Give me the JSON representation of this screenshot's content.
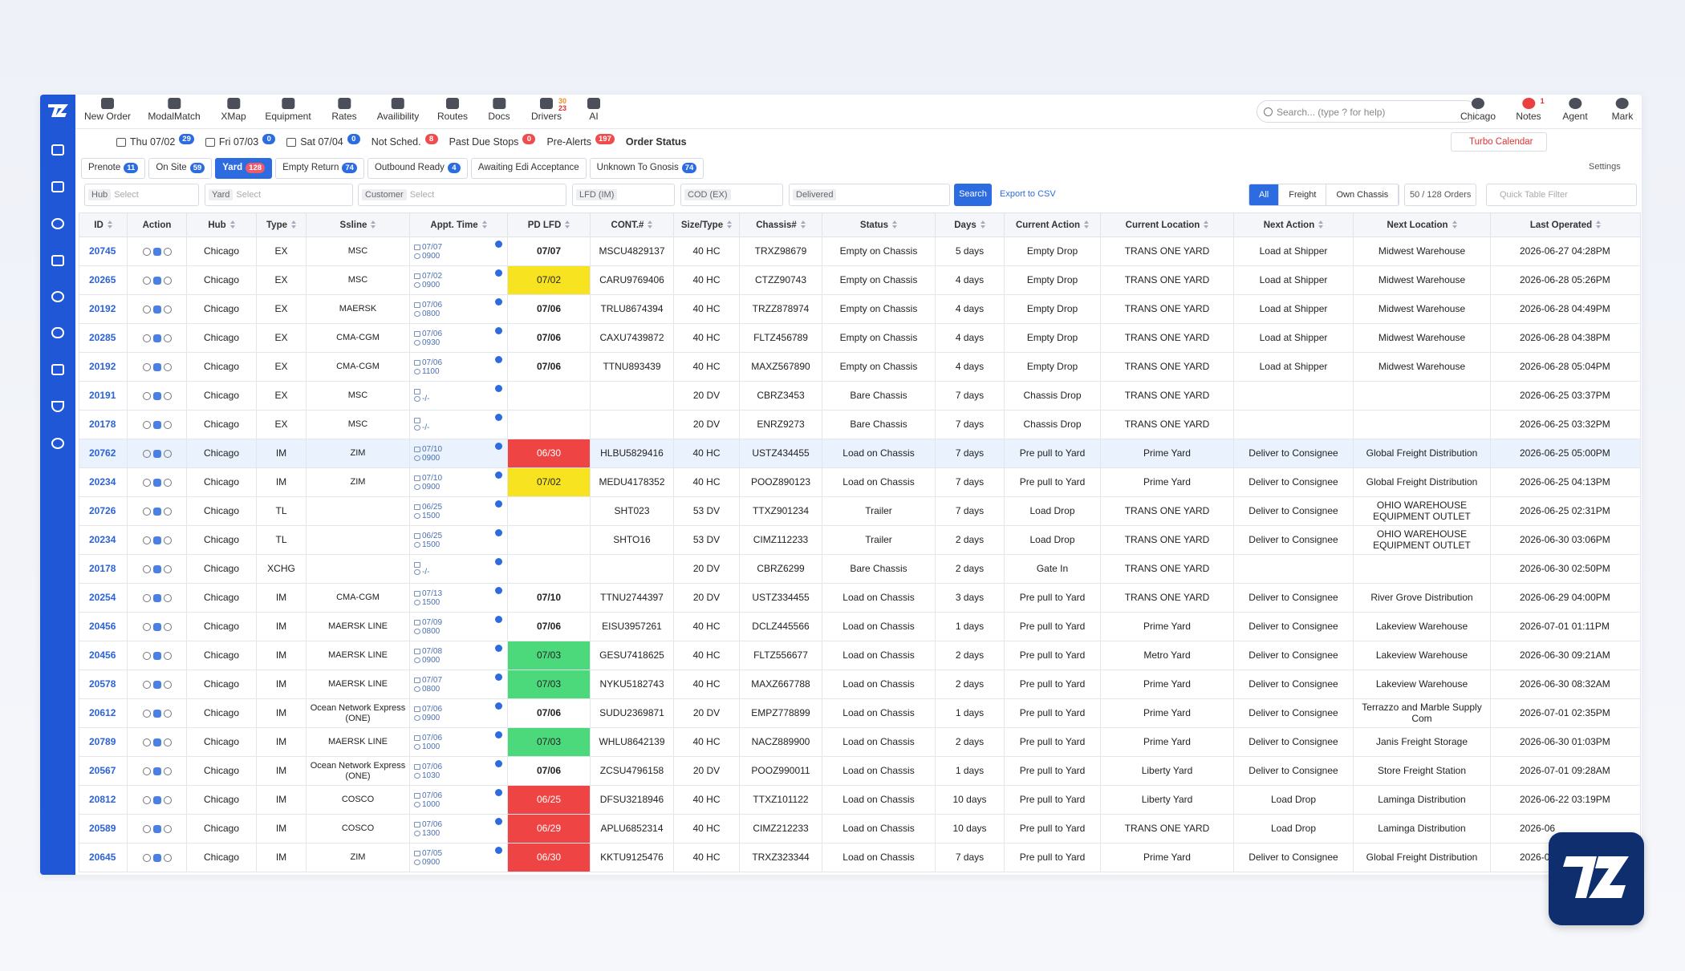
{
  "nav": {
    "items": [
      {
        "label": "New Order"
      },
      {
        "label": "ModalMatch"
      },
      {
        "label": "XMap"
      },
      {
        "label": "Equipment"
      },
      {
        "label": "Rates"
      },
      {
        "label": "Availibility"
      },
      {
        "label": "Routes"
      },
      {
        "label": "Docs"
      },
      {
        "label": "Drivers",
        "badges": [
          30,
          23
        ]
      },
      {
        "label": "AI"
      }
    ],
    "search_placeholder": "Search... (type ? for help)",
    "right_items": [
      {
        "label": "Chicago"
      },
      {
        "label": "Notes",
        "badge": 1
      },
      {
        "label": "Agent"
      },
      {
        "label": "Mark"
      }
    ]
  },
  "date_tabs": [
    {
      "label": "Thu 07/02",
      "badge": 29,
      "badge_color": "#2c6be0"
    },
    {
      "label": "Fri 07/03",
      "badge": 0,
      "badge_color": "#2c6be0"
    },
    {
      "label": "Sat 07/04",
      "badge": 0,
      "badge_color": "#2c6be0"
    },
    {
      "label": "Not Sched.",
      "badge": 8,
      "badge_color": "#ef4d4d"
    },
    {
      "label": "Past Due Stops",
      "badge": 0,
      "badge_color": "#ef4d4d"
    },
    {
      "label": "Pre-Alerts",
      "badge": 197,
      "badge_color": "#ef4d4d"
    },
    {
      "label": "Order Status"
    }
  ],
  "turbo_calendar": "Turbo Calendar",
  "status_tabs": [
    {
      "label": "Prenote",
      "badge": 11,
      "badge_color": "#2c6be0"
    },
    {
      "label": "On Site",
      "badge": 59,
      "badge_color": "#2c6be0"
    },
    {
      "label": "Yard",
      "badge": 128,
      "badge_color": "#ef5a6a"
    },
    {
      "label": "Empty Return",
      "badge": 74,
      "badge_color": "#2c6be0"
    },
    {
      "label": "Outbound Ready",
      "badge": 4,
      "badge_color": "#2c6be0"
    },
    {
      "label": "Awaiting Edi Acceptance"
    },
    {
      "label": "Unknown To Gnosis",
      "badge": 74,
      "badge_color": "#2c6be0"
    }
  ],
  "active_status_tab": 2,
  "settings": "Settings",
  "filters": {
    "selects": [
      {
        "label": "Hub",
        "placeholder": "Select"
      },
      {
        "label": "Yard",
        "placeholder": "Select"
      },
      {
        "label": "Customer",
        "placeholder": "Select"
      }
    ],
    "dates": [
      "LFD (IM)",
      "COD (EX)",
      "Delivered"
    ],
    "search": "Search",
    "export": "Export to CSV",
    "views": [
      "All",
      "Freight",
      "Own Chassis"
    ],
    "active_view": 0,
    "order_count": "50 / 128 Orders",
    "quick_filter": "Quick Table Filter"
  },
  "table": {
    "columns": [
      "ID",
      "Action",
      "Hub",
      "Type",
      "Ssline",
      "Appt. Time",
      "PD LFD",
      "CONT.#",
      "Size/Type",
      "Chassis#",
      "Status",
      "Days",
      "Current Action",
      "Current Location",
      "Next Action",
      "Next Location",
      "Last Operated"
    ],
    "selected_row": 7,
    "rows": [
      {
        "id": "20745",
        "hub": "Chicago",
        "type": "EX",
        "ssline": "MSC",
        "appt_date": "07/07",
        "appt_time": "0900",
        "pd_lfd": "07/07",
        "lfd_color": null,
        "cont": "MSCU4829137",
        "size": "40 HC",
        "chassis": "TRXZ98679",
        "status": "Empty on Chassis",
        "days": "5 days",
        "current_action": "Empty Drop",
        "current_location": "TRANS ONE YARD",
        "next_action": "Load at Shipper",
        "next_location": "Midwest Warehouse",
        "last_operated": "2026-06-27 04:28PM"
      },
      {
        "id": "20265",
        "hub": "Chicago",
        "type": "EX",
        "ssline": "MSC",
        "appt_date": "07/02",
        "appt_time": "0900",
        "pd_lfd": "07/02",
        "lfd_color": "#f7e31f",
        "cont": "CARU9769406",
        "size": "40 HC",
        "chassis": "CTZZ90743",
        "status": "Empty on Chassis",
        "days": "4 days",
        "current_action": "Empty Drop",
        "current_location": "TRANS ONE YARD",
        "next_action": "Load at Shipper",
        "next_location": "Midwest Warehouse",
        "last_operated": "2026-06-28 05:26PM"
      },
      {
        "id": "20192",
        "hub": "Chicago",
        "type": "EX",
        "ssline": "MAERSK",
        "appt_date": "07/06",
        "appt_time": "0800",
        "pd_lfd": "07/06",
        "lfd_color": null,
        "cont": "TRLU8674394",
        "size": "40 HC",
        "chassis": "TRZZ878974",
        "status": "Empty on Chassis",
        "days": "4 days",
        "current_action": "Empty Drop",
        "current_location": "TRANS ONE YARD",
        "next_action": "Load at Shipper",
        "next_location": "Midwest Warehouse",
        "last_operated": "2026-06-28 04:49PM"
      },
      {
        "id": "20285",
        "hub": "Chicago",
        "type": "EX",
        "ssline": "CMA-CGM",
        "appt_date": "07/06",
        "appt_time": "0930",
        "pd_lfd": "07/06",
        "lfd_color": null,
        "cont": "CAXU7439872",
        "size": "40 HC",
        "chassis": "FLTZ456789",
        "status": "Empty on Chassis",
        "days": "4 days",
        "current_action": "Empty Drop",
        "current_location": "TRANS ONE YARD",
        "next_action": "Load at Shipper",
        "next_location": "Midwest Warehouse",
        "last_operated": "2026-06-28 04:38PM"
      },
      {
        "id": "20192",
        "hub": "Chicago",
        "type": "EX",
        "ssline": "CMA-CGM",
        "appt_date": "07/06",
        "appt_time": "1100",
        "pd_lfd": "07/06",
        "lfd_color": null,
        "cont": "TTNU893439",
        "size": "40 HC",
        "chassis": "MAXZ567890",
        "status": "Empty on Chassis",
        "days": "4 days",
        "current_action": "Empty Drop",
        "current_location": "TRANS ONE YARD",
        "next_action": "Load at Shipper",
        "next_location": "Midwest Warehouse",
        "last_operated": "2026-06-28 05:04PM"
      },
      {
        "id": "20191",
        "hub": "Chicago",
        "type": "EX",
        "ssline": "MSC",
        "appt_date": null,
        "appt_time": "-/-",
        "pd_lfd": null,
        "lfd_color": null,
        "cont": null,
        "size": "20 DV",
        "chassis": "CBRZ3453",
        "status": "Bare Chassis",
        "days": "7 days",
        "current_action": "Chassis Drop",
        "current_location": "TRANS ONE YARD",
        "next_action": null,
        "next_location": null,
        "last_operated": "2026-06-25 03:37PM"
      },
      {
        "id": "20178",
        "hub": "Chicago",
        "type": "EX",
        "ssline": "MSC",
        "appt_date": null,
        "appt_time": "-/-",
        "pd_lfd": null,
        "lfd_color": null,
        "cont": null,
        "size": "20 DV",
        "chassis": "ENRZ9273",
        "status": "Bare Chassis",
        "days": "7 days",
        "current_action": "Chassis Drop",
        "current_location": "TRANS ONE YARD",
        "next_action": null,
        "next_location": null,
        "last_operated": "2026-06-25 03:32PM"
      },
      {
        "id": "20762",
        "hub": "Chicago",
        "type": "IM",
        "ssline": "ZIM",
        "appt_date": "07/10",
        "appt_time": "0900",
        "pd_lfd": "06/30",
        "lfd_color": "#ee4444",
        "cont": "HLBU5829416",
        "size": "40 HC",
        "chassis": "USTZ434455",
        "status": "Load on Chassis",
        "days": "7 days",
        "current_action": "Pre pull to Yard",
        "current_location": "Prime Yard",
        "next_action": "Deliver to Consignee",
        "next_location": "Global Freight Distribution",
        "last_operated": "2026-06-25 05:00PM"
      },
      {
        "id": "20234",
        "hub": "Chicago",
        "type": "IM",
        "ssline": "ZIM",
        "appt_date": "07/10",
        "appt_time": "0900",
        "pd_lfd": "07/02",
        "lfd_color": "#f7e31f",
        "cont": "MEDU4178352",
        "size": "40 HC",
        "chassis": "POOZ890123",
        "status": "Load on Chassis",
        "days": "7 days",
        "current_action": "Pre pull to Yard",
        "current_location": "Prime Yard",
        "next_action": "Deliver to Consignee",
        "next_location": "Global Freight Distribution",
        "last_operated": "2026-06-25 04:13PM"
      },
      {
        "id": "20726",
        "hub": "Chicago",
        "type": "TL",
        "ssline": null,
        "appt_date": "06/25",
        "appt_time": "1500",
        "pd_lfd": null,
        "lfd_color": null,
        "cont": "SHT023",
        "size": "53 DV",
        "chassis": "TTXZ901234",
        "status": "Trailer",
        "days": "7 days",
        "current_action": "Load Drop",
        "current_location": "TRANS ONE YARD",
        "next_action": "Deliver to Consignee",
        "next_location": "OHIO WAREHOUSE EQUIPMENT OUTLET",
        "last_operated": "2026-06-25 02:31PM"
      },
      {
        "id": "20234",
        "hub": "Chicago",
        "type": "TL",
        "ssline": null,
        "appt_date": "06/25",
        "appt_time": "1500",
        "pd_lfd": null,
        "lfd_color": null,
        "cont": "SHTO16",
        "size": "53 DV",
        "chassis": "CIMZ112233",
        "status": "Trailer",
        "days": "2 days",
        "current_action": "Load Drop",
        "current_location": "TRANS ONE YARD",
        "next_action": "Deliver to Consignee",
        "next_location": "OHIO WAREHOUSE EQUIPMENT OUTLET",
        "last_operated": "2026-06-30 03:06PM"
      },
      {
        "id": "20178",
        "hub": "Chicago",
        "type": "XCHG",
        "ssline": null,
        "appt_date": null,
        "appt_time": "-/-",
        "pd_lfd": null,
        "lfd_color": null,
        "cont": null,
        "size": "20 DV",
        "chassis": "CBRZ6299",
        "status": "Bare Chassis",
        "days": "2 days",
        "current_action": "Gate In",
        "current_location": "TRANS ONE YARD",
        "next_action": null,
        "next_location": null,
        "last_operated": "2026-06-30 02:50PM"
      },
      {
        "id": "20254",
        "hub": "Chicago",
        "type": "IM",
        "ssline": "CMA-CGM",
        "appt_date": "07/13",
        "appt_time": "1500",
        "pd_lfd": "07/10",
        "lfd_color": null,
        "cont": "TTNU2744397",
        "size": "20 DV",
        "chassis": "USTZ334455",
        "status": "Load on Chassis",
        "days": "3 days",
        "current_action": "Pre pull to Yard",
        "current_location": "TRANS ONE YARD",
        "next_action": "Deliver to Consignee",
        "next_location": "River Grove Distribution",
        "last_operated": "2026-06-29 04:00PM"
      },
      {
        "id": "20456",
        "hub": "Chicago",
        "type": "IM",
        "ssline": "MAERSK LINE",
        "appt_date": "07/09",
        "appt_time": "0800",
        "pd_lfd": "07/06",
        "lfd_color": null,
        "cont": "EISU3957261",
        "size": "40 HC",
        "chassis": "DCLZ445566",
        "status": "Load on Chassis",
        "days": "1 days",
        "current_action": "Pre pull to Yard",
        "current_location": "Prime Yard",
        "next_action": "Deliver to Consignee",
        "next_location": "Lakeview Warehouse",
        "last_operated": "2026-07-01 01:11PM"
      },
      {
        "id": "20456",
        "hub": "Chicago",
        "type": "IM",
        "ssline": "MAERSK LINE",
        "appt_date": "07/08",
        "appt_time": "0900",
        "pd_lfd": "07/03",
        "lfd_color": "#4cd97b",
        "cont": "GESU7418625",
        "size": "40 HC",
        "chassis": "FLTZ556677",
        "status": "Load on Chassis",
        "days": "2 days",
        "current_action": "Pre pull to Yard",
        "current_location": "Metro Yard",
        "next_action": "Deliver to Consignee",
        "next_location": "Lakeview Warehouse",
        "last_operated": "2026-06-30 09:21AM"
      },
      {
        "id": "20578",
        "hub": "Chicago",
        "type": "IM",
        "ssline": "MAERSK LINE",
        "appt_date": "07/07",
        "appt_time": "0800",
        "pd_lfd": "07/03",
        "lfd_color": "#4cd97b",
        "cont": "NYKU5182743",
        "size": "40 HC",
        "chassis": "MAXZ667788",
        "status": "Load on Chassis",
        "days": "2 days",
        "current_action": "Pre pull to Yard",
        "current_location": "Prime Yard",
        "next_action": "Deliver to Consignee",
        "next_location": "Lakeview Warehouse",
        "last_operated": "2026-06-30 08:32AM"
      },
      {
        "id": "20612",
        "hub": "Chicago",
        "type": "IM",
        "ssline": "Ocean Network Express (ONE)",
        "appt_date": "07/06",
        "appt_time": "0900",
        "pd_lfd": "07/06",
        "lfd_color": null,
        "cont": "SUDU2369871",
        "size": "20 DV",
        "chassis": "EMPZ778899",
        "status": "Load on Chassis",
        "days": "1 days",
        "current_action": "Pre pull to Yard",
        "current_location": "Prime Yard",
        "next_action": "Deliver to Consignee",
        "next_location": "Terrazzo and Marble Supply Com",
        "last_operated": "2026-07-01 02:35PM"
      },
      {
        "id": "20789",
        "hub": "Chicago",
        "type": "IM",
        "ssline": "MAERSK LINE",
        "appt_date": "07/06",
        "appt_time": "1000",
        "pd_lfd": "07/03",
        "lfd_color": "#4cd97b",
        "cont": "WHLU8642139",
        "size": "40 HC",
        "chassis": "NACZ889900",
        "status": "Load on Chassis",
        "days": "2 days",
        "current_action": "Pre pull to Yard",
        "current_location": "Prime Yard",
        "next_action": "Deliver to Consignee",
        "next_location": "Janis Freight Storage",
        "last_operated": "2026-06-30 01:03PM"
      },
      {
        "id": "20567",
        "hub": "Chicago",
        "type": "IM",
        "ssline": "Ocean Network Express (ONE)",
        "appt_date": "07/06",
        "appt_time": "1030",
        "pd_lfd": "07/06",
        "lfd_color": null,
        "cont": "ZCSU4796158",
        "size": "20 DV",
        "chassis": "POOZ990011",
        "status": "Load on Chassis",
        "days": "1 days",
        "current_action": "Pre pull to Yard",
        "current_location": "Liberty Yard",
        "next_action": "Deliver to Consignee",
        "next_location": "Store Freight Station",
        "last_operated": "2026-07-01 09:28AM"
      },
      {
        "id": "20812",
        "hub": "Chicago",
        "type": "IM",
        "ssline": "COSCO",
        "appt_date": "07/06",
        "appt_time": "1000",
        "pd_lfd": "06/25",
        "lfd_color": "#ee4444",
        "cont": "DFSU3218946",
        "size": "40 HC",
        "chassis": "TTXZ101122",
        "status": "Load on Chassis",
        "days": "10 days",
        "current_action": "Pre pull to Yard",
        "current_location": "Liberty Yard",
        "next_action": "Load Drop",
        "next_location": "Laminga Distribution",
        "last_operated": "2026-06-22 03:19PM"
      },
      {
        "id": "20589",
        "hub": "Chicago",
        "type": "IM",
        "ssline": "COSCO",
        "appt_date": "07/06",
        "appt_time": "1300",
        "pd_lfd": "06/29",
        "lfd_color": "#ee4444",
        "cont": "APLU6852314",
        "size": "40 HC",
        "chassis": "CIMZ212233",
        "status": "Load on Chassis",
        "days": "10 days",
        "current_action": "Pre pull to Yard",
        "current_location": "TRANS ONE YARD",
        "next_action": "Load Drop",
        "next_location": "Laminga Distribution",
        "last_operated": "2026-06"
      },
      {
        "id": "20645",
        "hub": "Chicago",
        "type": "IM",
        "ssline": "ZIM",
        "appt_date": "07/05",
        "appt_time": "0900",
        "pd_lfd": "06/30",
        "lfd_color": "#ee4444",
        "cont": "KKTU9125476",
        "size": "40 HC",
        "chassis": "TRXZ323344",
        "status": "Load on Chassis",
        "days": "7 days",
        "current_action": "Pre pull to Yard",
        "current_location": "Prime Yard",
        "next_action": "Deliver to Consignee",
        "next_location": "Global Freight Distribution",
        "last_operated": "2026-0"
      }
    ]
  }
}
